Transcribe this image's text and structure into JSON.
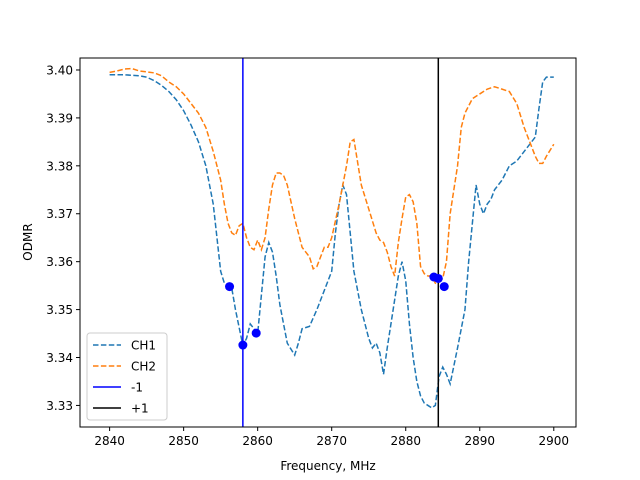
{
  "chart_data": {
    "type": "line",
    "title": "",
    "xlabel": "Frequency, MHz",
    "ylabel": "ODMR",
    "xlim": [
      2836,
      2903
    ],
    "ylim": [
      3.3255,
      3.4025
    ],
    "xticks": [
      2840,
      2850,
      2860,
      2870,
      2880,
      2890,
      2900
    ],
    "yticks": [
      3.33,
      3.34,
      3.35,
      3.36,
      3.37,
      3.38,
      3.39,
      3.4
    ],
    "xtick_labels": [
      "2840",
      "2850",
      "2860",
      "2870",
      "2880",
      "2890",
      "2900"
    ],
    "ytick_labels": [
      "3.33",
      "3.34",
      "3.35",
      "3.36",
      "3.37",
      "3.38",
      "3.39",
      "3.40"
    ],
    "grid": false,
    "legend_position": "lower-left",
    "series": [
      {
        "name": "CH1",
        "style": "dashed",
        "color": "#1f77b4",
        "x": [
          2840,
          2842,
          2844,
          2845,
          2846,
          2847,
          2848,
          2849,
          2850,
          2851,
          2852,
          2853,
          2854,
          2854.5,
          2855,
          2855.5,
          2856,
          2856.5,
          2857,
          2858,
          2858.5,
          2859,
          2860,
          2860.5,
          2861,
          2861.5,
          2862,
          2862.5,
          2863,
          2864,
          2865,
          2865.5,
          2866,
          2867,
          2868,
          2869,
          2870,
          2870.5,
          2871,
          2871.5,
          2872,
          2872.5,
          2873,
          2874,
          2875,
          2875.5,
          2876,
          2876.5,
          2877,
          2877.5,
          2878,
          2878.5,
          2879,
          2879.5,
          2880,
          2880.5,
          2881,
          2881.5,
          2882,
          2882.5,
          2883,
          2883.5,
          2884,
          2884.5,
          2885,
          2885.5,
          2886,
          2887,
          2888,
          2888.5,
          2889,
          2889.5,
          2890,
          2890.5,
          2891,
          2891.5,
          2892,
          2893,
          2894,
          2895,
          2896,
          2897,
          2897.5,
          2898,
          2898.5,
          2899,
          2900
        ],
        "y": [
          3.399,
          3.399,
          3.3988,
          3.3985,
          3.3978,
          3.3968,
          3.3955,
          3.3938,
          3.3915,
          3.3885,
          3.385,
          3.38,
          3.372,
          3.365,
          3.358,
          3.3555,
          3.355,
          3.3545,
          3.35,
          3.3425,
          3.344,
          3.347,
          3.345,
          3.353,
          3.361,
          3.364,
          3.362,
          3.357,
          3.351,
          3.343,
          3.3405,
          3.343,
          3.346,
          3.3465,
          3.35,
          3.354,
          3.358,
          3.366,
          3.372,
          3.376,
          3.374,
          3.366,
          3.358,
          3.35,
          3.344,
          3.342,
          3.343,
          3.341,
          3.3365,
          3.342,
          3.347,
          3.352,
          3.357,
          3.36,
          3.356,
          3.347,
          3.34,
          3.335,
          3.332,
          3.3305,
          3.33,
          3.3295,
          3.33,
          3.336,
          3.338,
          3.3365,
          3.3345,
          3.342,
          3.35,
          3.36,
          3.368,
          3.376,
          3.372,
          3.37,
          3.372,
          3.373,
          3.375,
          3.377,
          3.38,
          3.381,
          3.383,
          3.385,
          3.386,
          3.392,
          3.3975,
          3.3985,
          3.3985
        ]
      },
      {
        "name": "CH2",
        "style": "dashed",
        "color": "#ff7f0e",
        "x": [
          2840,
          2841,
          2842,
          2843,
          2844,
          2845,
          2846,
          2847,
          2848,
          2849,
          2850,
          2851,
          2852,
          2853,
          2854,
          2855,
          2855.5,
          2856,
          2856.5,
          2857,
          2857.5,
          2858,
          2858.5,
          2859,
          2859.5,
          2860,
          2860.5,
          2861,
          2861.5,
          2862,
          2862.5,
          2863,
          2863.5,
          2864,
          2865,
          2866,
          2867,
          2867.5,
          2868,
          2868.5,
          2869,
          2869.5,
          2870,
          2871,
          2872,
          2872.5,
          2873,
          2874,
          2875,
          2876,
          2876.5,
          2877,
          2877.5,
          2878,
          2878.5,
          2879,
          2879.5,
          2880,
          2880.5,
          2881,
          2881.5,
          2882,
          2882.5,
          2883,
          2883.5,
          2884,
          2884.5,
          2885,
          2885.5,
          2886,
          2887,
          2887.5,
          2888,
          2889,
          2890,
          2891,
          2892,
          2893,
          2894,
          2895,
          2896,
          2897,
          2897.5,
          2898,
          2898.5,
          2899,
          2900
        ],
        "y": [
          3.3995,
          3.3998,
          3.4002,
          3.4003,
          3.3998,
          3.3996,
          3.3994,
          3.3988,
          3.3975,
          3.3965,
          3.395,
          3.393,
          3.391,
          3.388,
          3.383,
          3.377,
          3.372,
          3.368,
          3.366,
          3.3655,
          3.3675,
          3.368,
          3.365,
          3.363,
          3.3625,
          3.3645,
          3.3625,
          3.365,
          3.371,
          3.376,
          3.3785,
          3.3785,
          3.378,
          3.376,
          3.369,
          3.363,
          3.361,
          3.3585,
          3.359,
          3.361,
          3.363,
          3.363,
          3.365,
          3.372,
          3.38,
          3.385,
          3.3855,
          3.376,
          3.371,
          3.366,
          3.3645,
          3.364,
          3.362,
          3.359,
          3.357,
          3.364,
          3.369,
          3.3735,
          3.374,
          3.3725,
          3.368,
          3.359,
          3.3575,
          3.357,
          3.357,
          3.3555,
          3.356,
          3.3565,
          3.36,
          3.37,
          3.38,
          3.388,
          3.391,
          3.394,
          3.395,
          3.396,
          3.3965,
          3.396,
          3.3955,
          3.393,
          3.388,
          3.384,
          3.382,
          3.3805,
          3.3805,
          3.382,
          3.3845
        ]
      }
    ],
    "markers": {
      "color": "#0000ff",
      "points": [
        {
          "x": 2856.2,
          "y": 3.3548
        },
        {
          "x": 2858.0,
          "y": 3.3426
        },
        {
          "x": 2859.8,
          "y": 3.3451
        },
        {
          "x": 2883.8,
          "y": 3.3568
        },
        {
          "x": 2884.4,
          "y": 3.3565
        },
        {
          "x": 2885.2,
          "y": 3.3548
        }
      ]
    },
    "vlines": [
      {
        "name": "-1",
        "x": 2858.0,
        "color": "#0000ff"
      },
      {
        "name": "+1",
        "x": 2884.4,
        "color": "#000000"
      }
    ],
    "legend": [
      {
        "label": "CH1",
        "style": "dashed",
        "color": "#1f77b4"
      },
      {
        "label": "CH2",
        "style": "dashed",
        "color": "#ff7f0e"
      },
      {
        "label": "-1",
        "style": "solid",
        "color": "#0000ff"
      },
      {
        "label": "+1",
        "style": "solid",
        "color": "#000000"
      }
    ]
  }
}
